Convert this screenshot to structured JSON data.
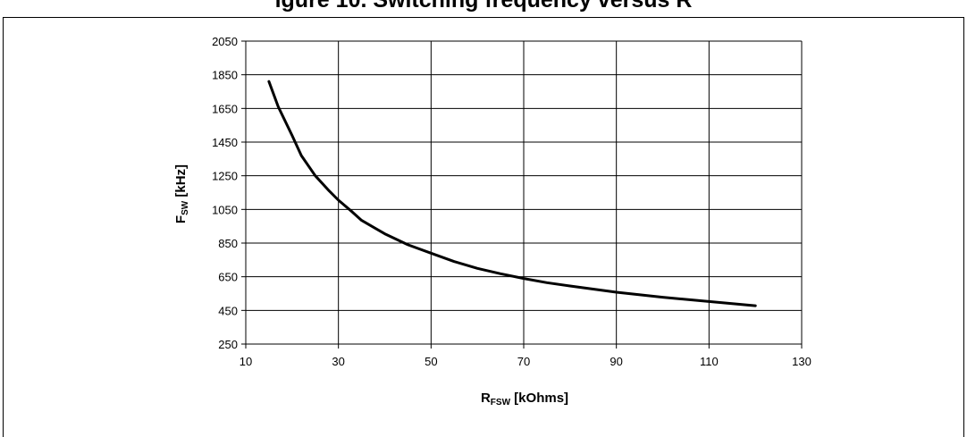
{
  "caption": "igure 10. Switching frequency versus R",
  "chart_data": {
    "type": "line",
    "x": [
      15,
      17,
      20,
      22,
      25,
      28,
      30,
      33,
      35,
      40,
      45,
      50,
      55,
      60,
      65,
      70,
      75,
      80,
      90,
      100,
      110,
      120
    ],
    "series": [
      {
        "values": [
          1810,
          1660,
          1490,
          1370,
          1250,
          1160,
          1105,
          1035,
          985,
          905,
          840,
          790,
          740,
          700,
          668,
          640,
          615,
          595,
          558,
          528,
          503,
          478
        ]
      }
    ],
    "xlim": [
      10,
      130
    ],
    "ylim": [
      250,
      2050
    ],
    "xticks": [
      10,
      30,
      50,
      70,
      90,
      110,
      130
    ],
    "yticks": [
      250,
      450,
      650,
      850,
      1050,
      1250,
      1450,
      1650,
      1850,
      2050
    ],
    "xlabel": {
      "main": "R",
      "sub": "FSW",
      "rest": " [kOhms]"
    },
    "ylabel": {
      "main": "F",
      "sub": "SW",
      "rest": " [kHz]"
    },
    "grid": true,
    "line_color": "#000000"
  }
}
